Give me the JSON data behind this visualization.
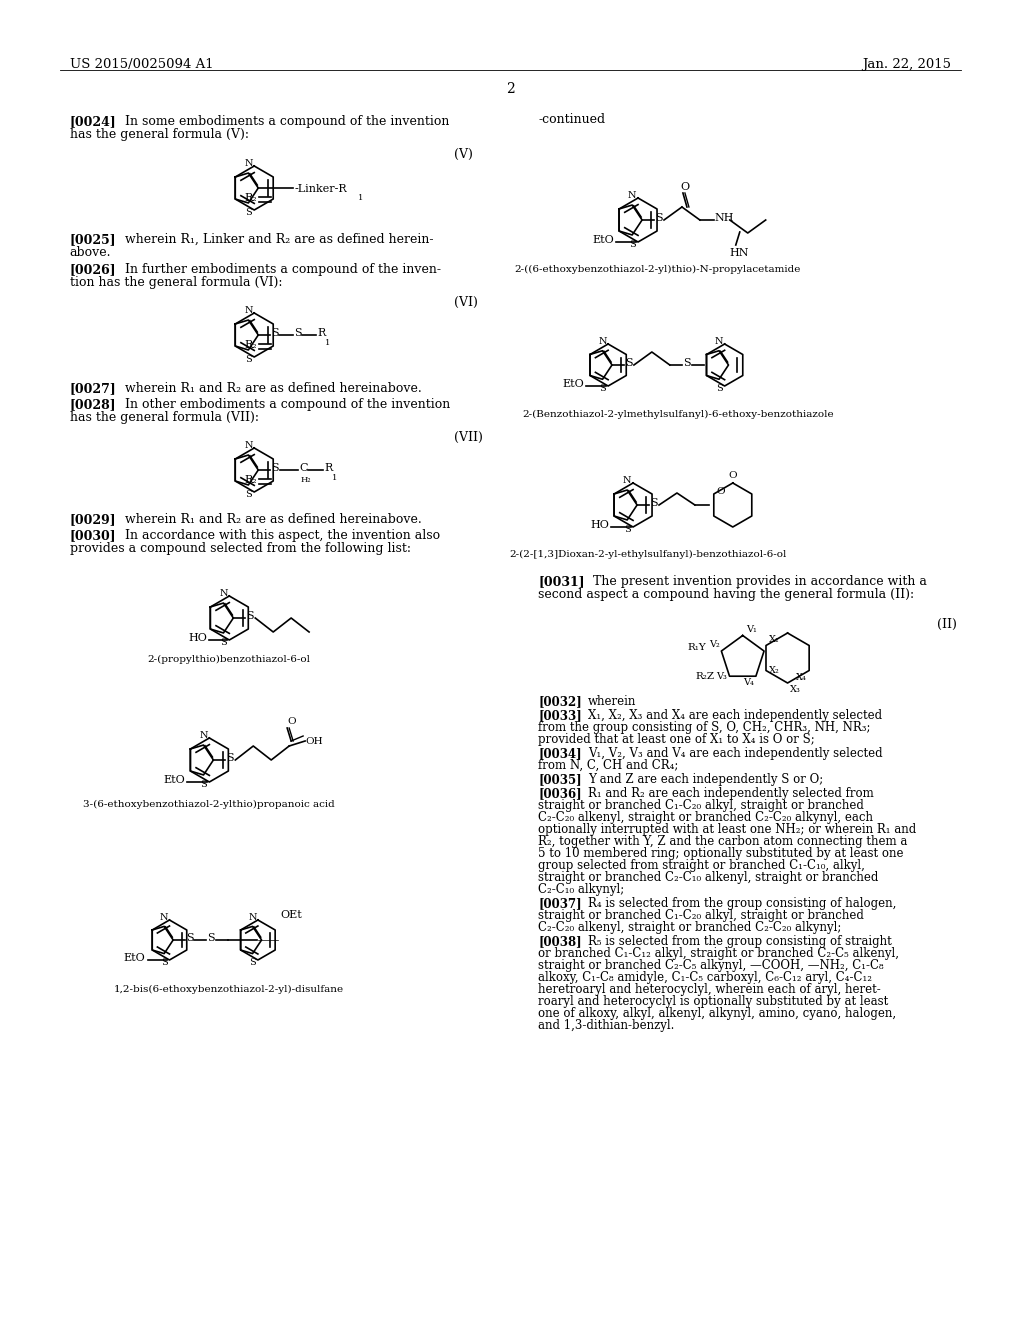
{
  "bg_color": "#ffffff",
  "header_left": "US 2015/0025094 A1",
  "header_right": "Jan. 22, 2015",
  "page_num": "2",
  "continued": "-continued",
  "para_0024_1": "[0024]",
  "para_0024_2": "In some embodiments a compound of the invention",
  "para_0024_3": "has the general formula (V):",
  "label_V": "(V)",
  "para_0025_1": "[0025]",
  "para_0025_2": "wherein R",
  "para_0025_3": "1",
  "para_0025_4": ", Linker and R",
  "para_0025_5": "2",
  "para_0025_6": " are as defined herein-",
  "para_0025_7": "above.",
  "para_0026_1": "[0026]",
  "para_0026_2": "In further embodiments a compound of the inven-",
  "para_0026_3": "tion has the general formula (VI):",
  "label_VI": "(VI)",
  "para_0027_1": "[0027]",
  "para_0027_2": "wherein R",
  "para_0027_3": "1",
  "para_0027_4": " and R",
  "para_0027_5": "2",
  "para_0027_6": " are as defined hereinabove.",
  "para_0028_1": "[0028]",
  "para_0028_2": "In other embodiments a compound of the invention",
  "para_0028_3": "has the general formula (VII):",
  "label_VII": "(VII)",
  "para_0029_1": "[0029]",
  "para_0029_2": "wherein R",
  "para_0029_3": "1",
  "para_0029_4": " and R",
  "para_0029_5": "2",
  "para_0029_6": " are as defined hereinabove.",
  "para_0030_1": "[0030]",
  "para_0030_2": "In accordance with this aspect, the invention also",
  "para_0030_3": "provides a compound selected from the following list:",
  "compound1_label": "2-(propylthio)benzothiazol-6-ol",
  "compound2_label": "3-(6-ethoxybenzothiazol-2-ylthio)propanoic acid",
  "compound3_label": "1,2-bis(6-ethoxybenzothiazol-2-yl)-disulfane",
  "compound4_label": "2-((6-ethoxybenzothiazol-2-yl)thio)-N-propylacetamide",
  "compound5_label": "2-(Benzothiazol-2-ylmethylsulfanyl)-6-ethoxy-benzothiazole",
  "compound6_label": "2-(2-[1,3]Dioxan-2-yl-ethylsulfanyl)-benzothiazol-6-ol",
  "para_0031_1": "[0031]",
  "para_0031_2": "The present invention provides in accordance with a",
  "para_0031_3": "second aspect a compound having the general formula (II):",
  "label_II": "(II)",
  "para_0032": "[0032] wherein",
  "para_0033_bold": "[0033]",
  "para_0033": " X",
  "para_0034_bold": "[0034]",
  "para_0035_bold": "[0035]",
  "para_0036_bold": "[0036]",
  "para_0037_bold": "[0037]",
  "para_0038_bold": "[0038]"
}
